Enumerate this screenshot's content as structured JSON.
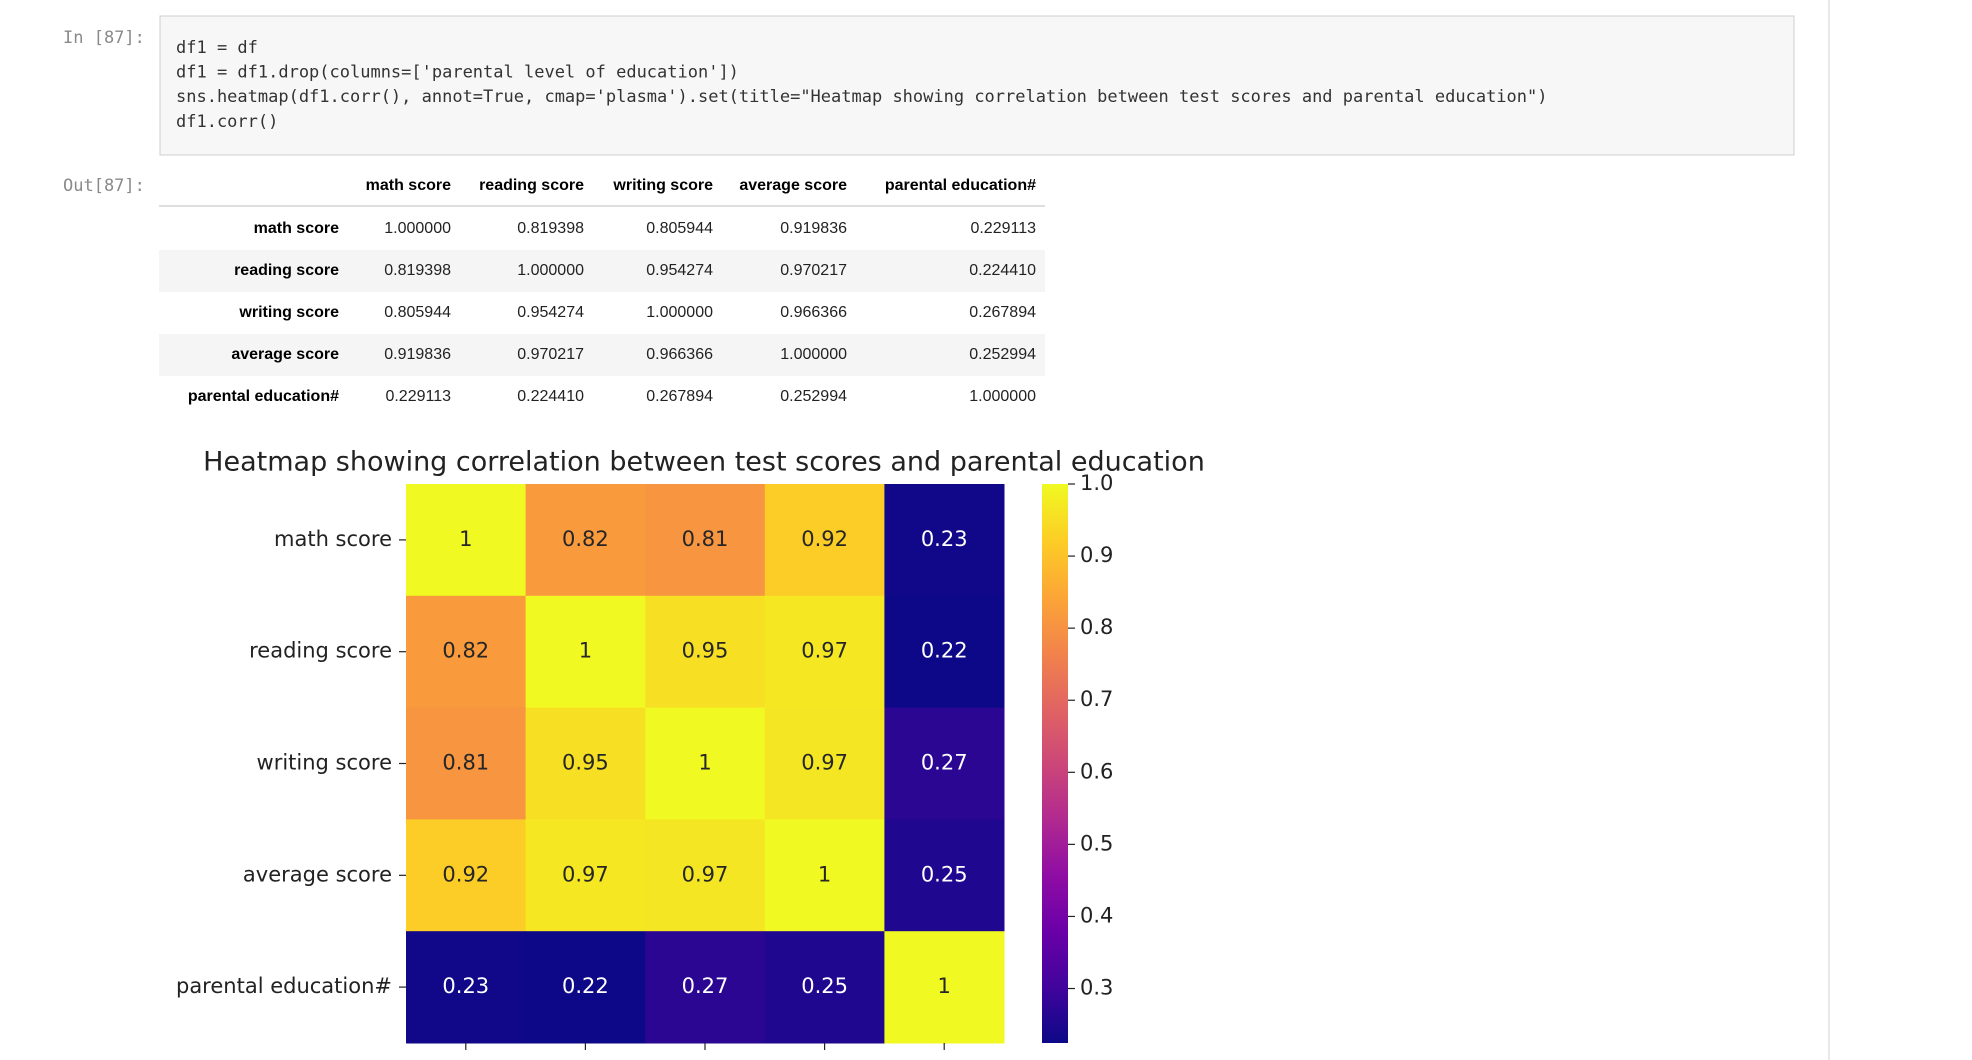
{
  "input_prompt": "In [87]:",
  "code_lines": [
    "df1 = df",
    "df1 = df1.drop(columns=['parental level of education'])",
    "sns.heatmap(df1.corr(), annot=True, cmap='plasma').set(title=\"Heatmap showing correlation between test scores and parental education\")",
    "df1.corr()"
  ],
  "output_prompt": "Out[87]:",
  "table": {
    "columns": [
      "math score",
      "reading score",
      "writing score",
      "average score",
      "parental education#"
    ],
    "rows": [
      {
        "label": "math score",
        "values": [
          "1.000000",
          "0.819398",
          "0.805944",
          "0.919836",
          "0.229113"
        ]
      },
      {
        "label": "reading score",
        "values": [
          "0.819398",
          "1.000000",
          "0.954274",
          "0.970217",
          "0.224410"
        ]
      },
      {
        "label": "writing score",
        "values": [
          "0.805944",
          "0.954274",
          "1.000000",
          "0.966366",
          "0.267894"
        ]
      },
      {
        "label": "average score",
        "values": [
          "0.919836",
          "0.970217",
          "0.966366",
          "1.000000",
          "0.252994"
        ]
      },
      {
        "label": "parental education#",
        "values": [
          "0.229113",
          "0.224410",
          "0.267894",
          "0.252994",
          "1.000000"
        ]
      }
    ]
  },
  "chart_data": {
    "type": "heatmap",
    "title": "Heatmap showing correlation between test scores and parental education",
    "y_categories": [
      "math score",
      "reading score",
      "writing score",
      "average score",
      "parental education#"
    ],
    "values": [
      [
        1.0,
        0.819398,
        0.805944,
        0.919836,
        0.229113
      ],
      [
        0.819398,
        1.0,
        0.954274,
        0.970217,
        0.22441
      ],
      [
        0.805944,
        0.954274,
        1.0,
        0.966366,
        0.267894
      ],
      [
        0.919836,
        0.970217,
        0.966366,
        1.0,
        0.252994
      ],
      [
        0.229113,
        0.22441,
        0.267894,
        0.252994,
        1.0
      ]
    ],
    "value_labels": [
      [
        "1",
        "0.82",
        "0.81",
        "0.92",
        "0.23"
      ],
      [
        "0.82",
        "1",
        "0.95",
        "0.97",
        "0.22"
      ],
      [
        "0.81",
        "0.95",
        "1",
        "0.97",
        "0.27"
      ],
      [
        "0.92",
        "0.97",
        "0.97",
        "1",
        "0.25"
      ],
      [
        "0.23",
        "0.22",
        "0.27",
        "0.25",
        "1"
      ]
    ],
    "cmap": "plasma",
    "colorbar": {
      "lim": [
        0.22441,
        1.0
      ],
      "ticks": [
        0.3,
        0.4,
        0.5,
        0.6,
        0.7,
        0.8,
        0.9,
        {
          "value": 1.0,
          "label": "1.0"
        }
      ]
    }
  }
}
